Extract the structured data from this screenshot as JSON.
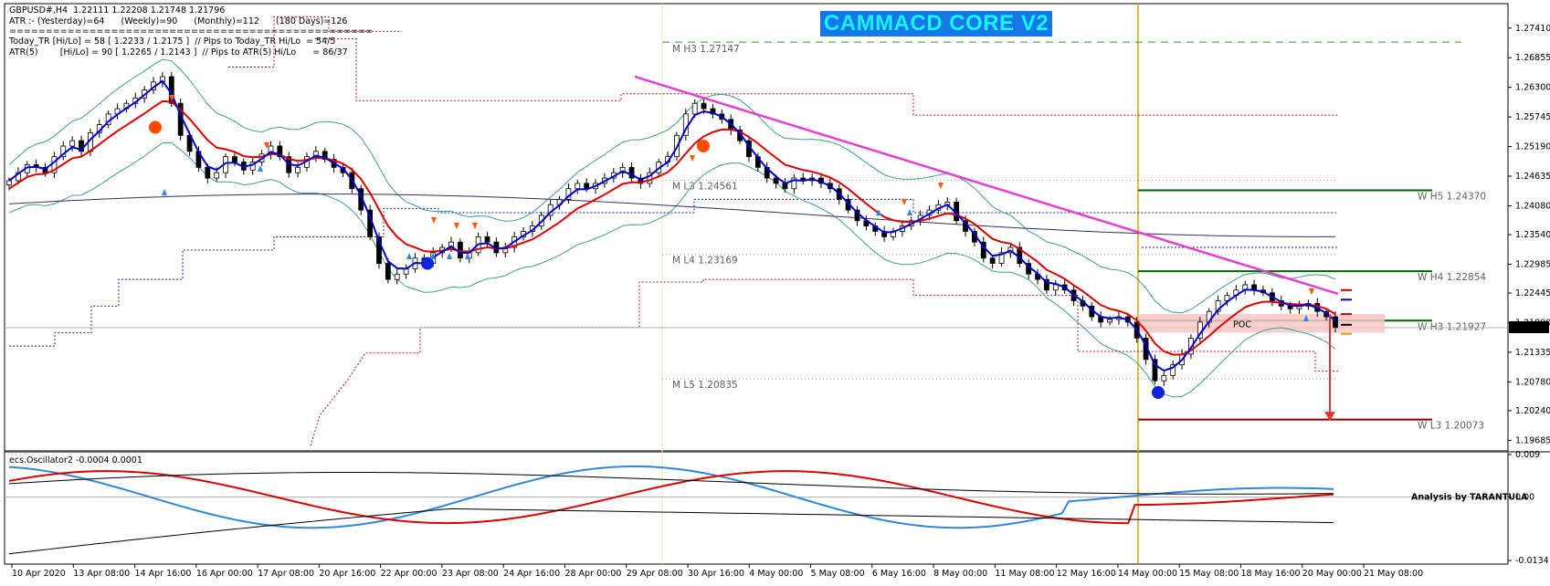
{
  "header": {
    "symbol_line": "GBPUSD#,H4  1.22111 1.22208 1.21748 1.21796",
    "atr_line": "ATR :- (Yesterday)=64      (Weekly)=90      (Monthly)=112      (180 Days)=126",
    "separator": "==================================================",
    "today_tr_line": "Today_TR [Hi/Lo] = 58 [ 1.2233 / 1.2175 ]  // Pips to Today_TR Hi/Lo  = 54/5",
    "atr5_line": "ATR(5)        [Hi/Lo] = 90 [ 1.2265 / 1.2143 ]  // Pips to ATR(5) Hi/Lo      = 86/37"
  },
  "banner": {
    "text": "CAMMACD CORE V2",
    "bg": "#1677e6",
    "fg": "#17f4ff"
  },
  "colors": {
    "bull": "#ffffff",
    "bear": "#000000",
    "ma_fast": "#0000cc",
    "ma_slow": "#dd0000",
    "bollinger": "#3b9e9a",
    "trendline": "#e83ecf",
    "pivot_dotted": "#b0101a",
    "pivot_blue": "#1a1aa0",
    "resistance": "#006400",
    "support": "#8b0000",
    "vline": "#e0a000",
    "poc_box": "#f6c7c7",
    "osc_red": "#dd0000",
    "osc_blue": "#2f86e0",
    "osc_black": "#000000"
  },
  "chart_data": [
    {
      "type": "candlestick",
      "title": "GBPUSD#,H4",
      "ohlc_last": {
        "open": 1.22111,
        "high": 1.22208,
        "low": 1.21748,
        "close": 1.21796
      },
      "ylim": [
        1.1952,
        1.278
      ],
      "y_ticks": [
        "1.27410",
        "1.26855",
        "1.26300",
        "1.25745",
        "1.25190",
        "1.24635",
        "1.24080",
        "1.23540",
        "1.22985",
        "1.22445",
        "1.21890",
        "1.21335",
        "1.20780",
        "1.20240",
        "1.19685"
      ],
      "current_price_label": "1.21796",
      "x_ticks": [
        "10 Apr 2020",
        "13 Apr 08:00",
        "14 Apr 16:00",
        "16 Apr 00:00",
        "17 Apr 08:00",
        "20 Apr 16:00",
        "22 Apr 00:00",
        "23 Apr 08:00",
        "24 Apr 16:00",
        "28 Apr 00:00",
        "29 Apr 08:00",
        "30 Apr 16:00",
        "4 May 00:00",
        "5 May 08:00",
        "6 May 16:00",
        "8 May 00:00",
        "11 May 08:00",
        "12 May 16:00",
        "14 May 00:00",
        "15 May 08:00",
        "18 May 16:00",
        "20 May 00:00",
        "21 May 08:00"
      ],
      "levels": [
        {
          "label": "M  H3 1.27147",
          "value": 1.27147,
          "style": "dashed-green"
        },
        {
          "label": "M  L3 1.24561",
          "value": 1.24561,
          "style": "dotted-grey"
        },
        {
          "label": "M  L4 1.23169",
          "value": 1.23169,
          "style": "dotted-grey"
        },
        {
          "label": "M  L5 1.20835",
          "value": 1.20835,
          "style": "dotted-grey"
        },
        {
          "label": "W  H5 1.24370",
          "value": 1.2437,
          "style": "solid-green"
        },
        {
          "label": "W  H4 1.22854",
          "value": 1.22854,
          "style": "solid-green"
        },
        {
          "label": "W  H3 1.21927",
          "value": 1.21927,
          "style": "solid-green"
        },
        {
          "label": "W  L3 1.20073",
          "value": 1.20073,
          "style": "solid-darkred"
        }
      ],
      "poc_label": "POC",
      "closes": [
        1.2455,
        1.247,
        1.2485,
        1.248,
        1.247,
        1.25,
        1.252,
        1.253,
        1.251,
        1.2545,
        1.256,
        1.258,
        1.259,
        1.26,
        1.261,
        1.2625,
        1.264,
        1.265,
        1.26,
        1.254,
        1.251,
        1.248,
        1.246,
        1.247,
        1.25,
        1.249,
        1.2475,
        1.249,
        1.2505,
        1.252,
        1.25,
        1.247,
        1.248,
        1.25,
        1.251,
        1.2495,
        1.248,
        1.247,
        1.244,
        1.24,
        1.235,
        1.23,
        1.227,
        1.228,
        1.229,
        1.231,
        1.23,
        1.232,
        1.233,
        1.234,
        1.231,
        1.232,
        1.235,
        1.234,
        1.232,
        1.233,
        1.235,
        1.236,
        1.237,
        1.239,
        1.241,
        1.242,
        1.244,
        1.245,
        1.244,
        1.245,
        1.246,
        1.247,
        1.248,
        1.246,
        1.245,
        1.247,
        1.249,
        1.25,
        1.254,
        1.258,
        1.26,
        1.259,
        1.258,
        1.257,
        1.255,
        1.253,
        1.25,
        1.248,
        1.246,
        1.245,
        1.244,
        1.246,
        1.2455,
        1.246,
        1.245,
        1.244,
        1.242,
        1.24,
        1.238,
        1.237,
        1.236,
        1.235,
        1.236,
        1.237,
        1.238,
        1.239,
        1.24,
        1.241,
        1.2415,
        1.238,
        1.236,
        1.234,
        1.231,
        1.23,
        1.232,
        1.233,
        1.23,
        1.228,
        1.227,
        1.225,
        1.226,
        1.225,
        1.223,
        1.222,
        1.22,
        1.219,
        1.2195,
        1.22,
        1.219,
        1.216,
        1.212,
        1.208,
        1.209,
        1.211,
        1.213,
        1.216,
        1.219,
        1.221,
        1.223,
        1.224,
        1.225,
        1.226,
        1.225,
        1.2245,
        1.223,
        1.222,
        1.2215,
        1.222,
        1.2225,
        1.221,
        1.22,
        1.218
      ],
      "series": [
        {
          "values": [
            1.2455,
            1.2468,
            1.248,
            1.2481,
            1.2477,
            1.249,
            1.2505,
            1.2518,
            1.2513,
            1.2532,
            1.2548,
            1.2566,
            1.2579,
            1.2591,
            1.2602,
            1.2616,
            1.263,
            1.2642,
            1.2618,
            1.2578,
            1.2543,
            1.2509,
            1.2482,
            1.2475,
            1.2488,
            1.2489,
            1.2481,
            1.2485,
            1.2496,
            1.2509,
            1.2504,
            1.2486,
            1.2483,
            1.2492,
            1.2502,
            1.2498,
            1.2488,
            1.2478,
            1.2457,
            1.2427,
            1.2387,
            1.2342,
            1.2304,
            1.2291,
            1.229,
            1.2301,
            1.23,
            1.2311,
            1.2322,
            1.2332,
            1.232,
            1.232,
            1.2336,
            1.2338,
            1.2328,
            1.2329,
            1.2341,
            1.2352,
            1.2362,
            1.2378,
            1.2396,
            1.2409,
            1.2426,
            1.2439,
            1.2439,
            1.2445,
            1.2454,
            1.2463,
            1.2473,
            1.2466,
            1.2457,
            1.2464,
            1.2478,
            1.249,
            1.2517,
            1.2552,
            1.2578,
            1.2585,
            1.2582,
            1.2575,
            1.2561,
            1.2544,
            1.252,
            1.2498,
            1.2478,
            1.2463,
            1.245,
            1.2456,
            1.2455,
            1.2458,
            1.2453,
            1.2445,
            1.2431,
            1.2413,
            1.2395,
            1.2381,
            1.2369,
            1.2358,
            1.2359,
            1.2366,
            1.2374,
            1.2383,
            1.2393,
            1.2403,
            1.241,
            1.2394,
            1.2375,
            1.2355,
            1.2331,
            1.2314,
            1.2317,
            1.2324,
            1.2311,
            1.2294,
            1.2281,
            1.2264,
            1.2262,
            1.2255,
            1.2241,
            1.2229,
            1.2213,
            1.22,
            1.2197,
            1.2199,
            1.2194,
            1.2176,
            1.2146,
            1.211,
            1.2099,
            1.2105,
            1.2119,
            1.2142,
            1.2168,
            1.2191,
            1.2213,
            1.2228,
            1.224,
            1.2251,
            1.225,
            1.2247,
            1.2237,
            1.2228,
            1.2221,
            1.222,
            1.2223,
            1.2216,
            1.2207,
            1.2192
          ]
        },
        {
          "values": [
            1.244,
            1.2451,
            1.2462,
            1.2467,
            1.2468,
            1.2475,
            1.2486,
            1.2497,
            1.25,
            1.2511,
            1.2523,
            1.2536,
            1.2548,
            1.2559,
            1.257,
            1.2581,
            1.2593,
            1.2604,
            1.2603,
            1.2588,
            1.2571,
            1.2551,
            1.2531,
            1.2517,
            1.2514,
            1.2509,
            1.2501,
            1.2499,
            1.25,
            1.2505,
            1.2504,
            1.2496,
            1.2492,
            1.2494,
            1.2498,
            1.2497,
            1.2493,
            1.2487,
            1.2476,
            1.2458,
            1.2432,
            1.2401,
            1.237,
            1.235,
            1.2336,
            1.233,
            1.2323,
            1.2322,
            1.2324,
            1.2327,
            1.2323,
            1.2322,
            1.2327,
            1.233,
            1.2328,
            1.2328,
            1.2333,
            1.2339,
            1.2345,
            1.2355,
            1.2366,
            1.2377,
            1.239,
            1.2403,
            1.2411,
            1.242,
            1.2429,
            1.2439,
            1.2449,
            1.2452,
            1.2452,
            1.2456,
            1.2463,
            1.2471,
            1.2486,
            1.2506,
            1.2525,
            1.2538,
            1.2546,
            1.2551,
            1.2551,
            1.2547,
            1.2537,
            1.2525,
            1.2511,
            1.2498,
            1.2485,
            1.248,
            1.2475,
            1.2472,
            1.2467,
            1.2461,
            1.2452,
            1.244,
            1.2426,
            1.2412,
            1.2399,
            1.2387,
            1.2381,
            1.2378,
            1.2378,
            1.238,
            1.2384,
            1.2389,
            1.2394,
            1.2391,
            1.2384,
            1.2374,
            1.236,
            1.2346,
            1.234,
            1.2337,
            1.2327,
            1.2315,
            1.2303,
            1.2288,
            1.228,
            1.2271,
            1.2259,
            1.2248,
            1.2235,
            1.2222,
            1.2215,
            1.2211,
            1.2205,
            1.2193,
            1.2174,
            1.215,
            1.2135,
            1.2129,
            1.2129,
            1.2137,
            1.215,
            1.2164,
            1.2179,
            1.2193,
            1.2206,
            1.2218,
            1.2224,
            1.2228,
            1.2228,
            1.2226,
            1.2224,
            1.2223,
            1.2223,
            1.222,
            1.2215,
            1.2205
          ]
        }
      ]
    },
    {
      "type": "line",
      "title": "ecs.Oscillator2 -0.0004 0.0001",
      "ylim": [
        -0.0134,
        0.009
      ],
      "y_ticks": [
        "0.009",
        "0.00",
        "-0.0134"
      ],
      "zero_label": "0.00",
      "annotation": "Analysis by TARANTULA"
    }
  ]
}
